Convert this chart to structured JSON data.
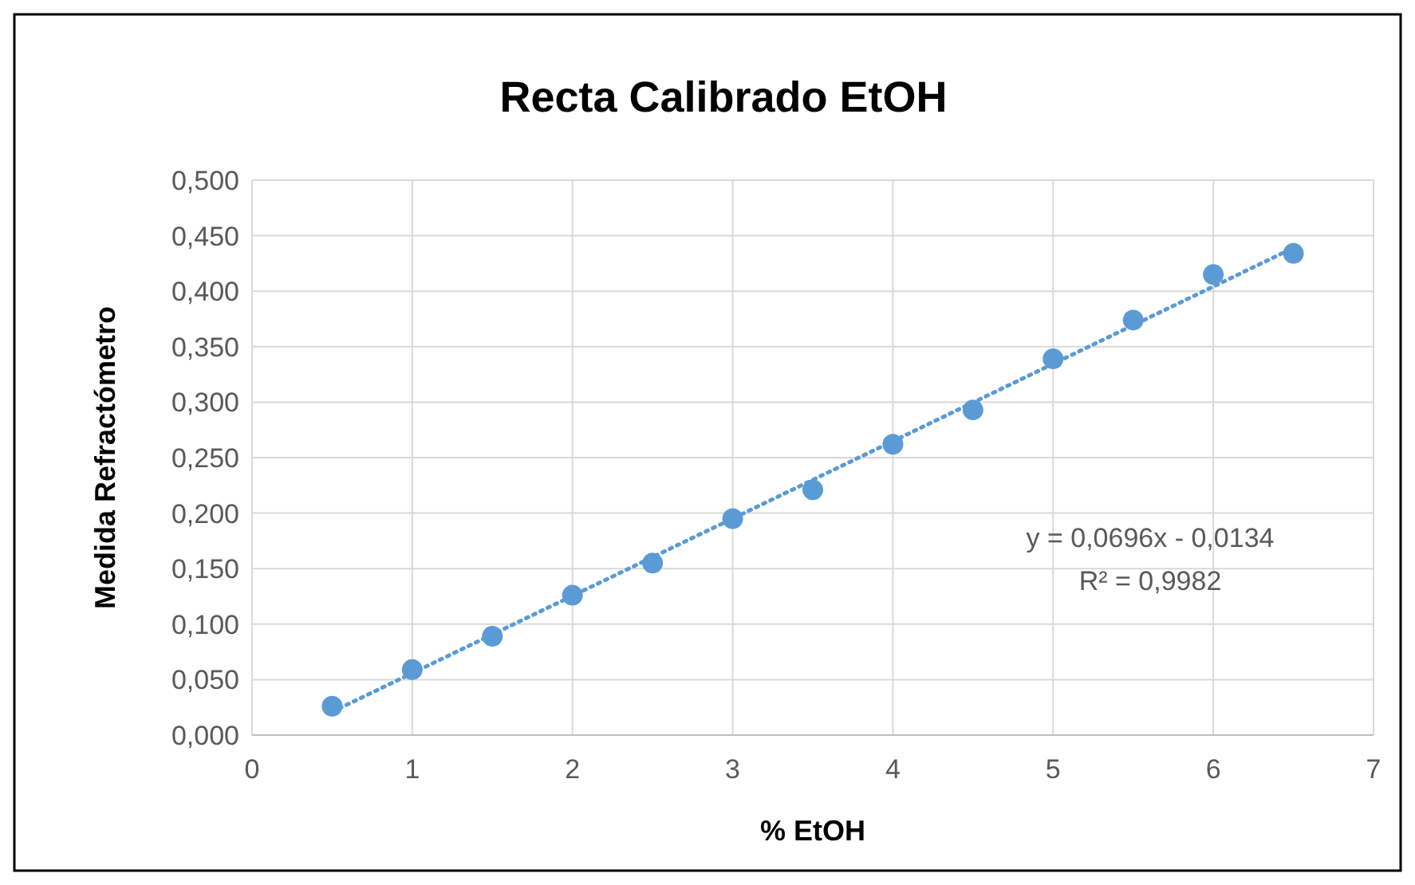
{
  "chart_data": {
    "type": "scatter",
    "title": "Recta Calibrado EtOH",
    "xlabel": "% EtOH",
    "ylabel": "Medida Refractómetro",
    "xlim": [
      0,
      7
    ],
    "xticks": [
      0,
      1,
      2,
      3,
      4,
      5,
      6,
      7
    ],
    "ylim": [
      0,
      0.5
    ],
    "yticks": [
      {
        "value": 0,
        "label": "0,000"
      },
      {
        "value": 0.05,
        "label": "0,050"
      },
      {
        "value": 0.1,
        "label": "0,100"
      },
      {
        "value": 0.15,
        "label": "0,150"
      },
      {
        "value": 0.2,
        "label": "0,200"
      },
      {
        "value": 0.25,
        "label": "0,250"
      },
      {
        "value": 0.3,
        "label": "0,300"
      },
      {
        "value": 0.35,
        "label": "0,350"
      },
      {
        "value": 0.4,
        "label": "0,400"
      },
      {
        "value": 0.45,
        "label": "0,450"
      },
      {
        "value": 0.5,
        "label": "0,500"
      }
    ],
    "grid": true,
    "series": [
      {
        "type": "scatter",
        "color": "#5b9bd5",
        "marker": "circle",
        "x": [
          0.5,
          1,
          1.5,
          2,
          2.5,
          3,
          3.5,
          4,
          4.5,
          5,
          5.5,
          6,
          6.5
        ],
        "values": [
          0.026,
          0.059,
          0.089,
          0.126,
          0.155,
          0.195,
          0.221,
          0.262,
          0.293,
          0.339,
          0.374,
          0.415,
          0.434
        ]
      },
      {
        "type": "line",
        "color": "#5b9bd5",
        "marker": "none",
        "line_style": "dotted",
        "x": [
          0.5,
          6.5
        ],
        "values": [
          0.021,
          0.439
        ]
      }
    ],
    "annotations": [
      "y = 0,0696x - 0,0134",
      "R² = 0,9982"
    ]
  }
}
